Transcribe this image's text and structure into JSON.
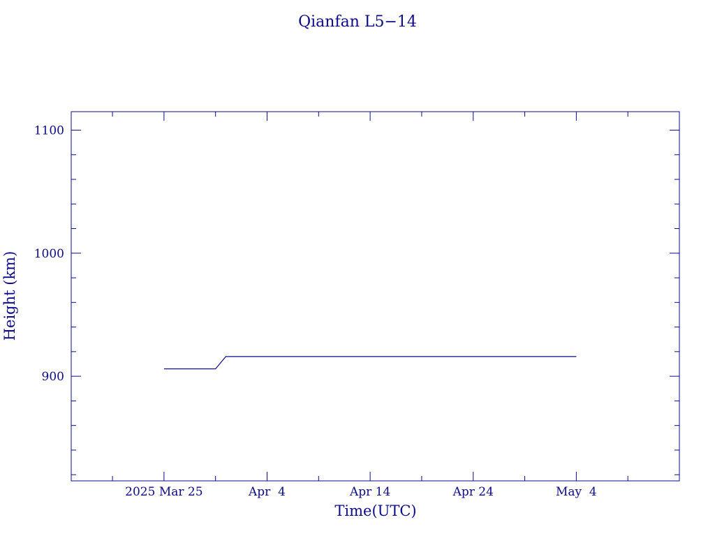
{
  "chart_data": {
    "type": "line",
    "title": "Qianfan L5−14",
    "xlabel": "Time(UTC)",
    "ylabel": "Height (km)",
    "ylim": [
      815,
      1115
    ],
    "xlim": [
      "2025-03-16",
      "2025-05-14"
    ],
    "grid": false,
    "colors": {
      "axis": "#0b0b8c",
      "series": "#0b0b8c"
    },
    "y_ticks": [
      900,
      1000,
      1100
    ],
    "y_minor_step": 20,
    "x_ticks": [
      {
        "date": "2025-03-25",
        "label": "2025 Mar 25"
      },
      {
        "date": "2025-04-04",
        "label": "Apr  4"
      },
      {
        "date": "2025-04-14",
        "label": "Apr 14"
      },
      {
        "date": "2025-04-24",
        "label": "Apr 24"
      },
      {
        "date": "2025-05-04",
        "label": "May  4"
      }
    ],
    "x_minor_dates": [
      "2025-03-20",
      "2025-03-30",
      "2025-04-09",
      "2025-04-19",
      "2025-04-29",
      "2025-05-09"
    ],
    "series": [
      {
        "x": [
          "2025-03-25",
          "2025-03-30",
          "2025-03-31",
          "2025-05-04"
        ],
        "y": [
          906,
          906,
          916,
          916
        ]
      }
    ]
  }
}
